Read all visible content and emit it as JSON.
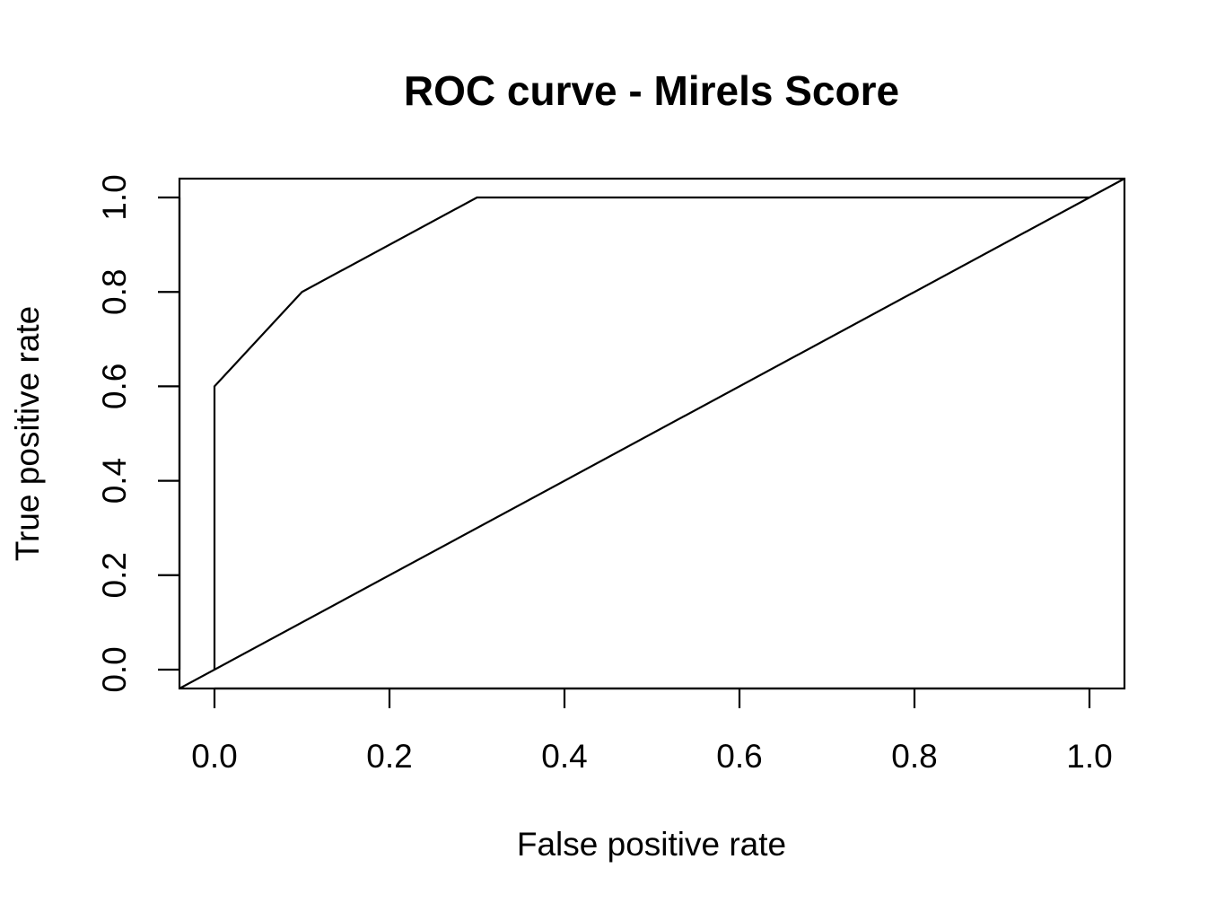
{
  "chart_data": {
    "type": "line",
    "title": "ROC curve - Mirels Score",
    "xlabel": "False positive rate",
    "ylabel": "True positive rate",
    "xlim": [
      -0.04,
      1.04
    ],
    "ylim": [
      -0.04,
      1.04
    ],
    "x_ticks": [
      0.0,
      0.2,
      0.4,
      0.6,
      0.8,
      1.0
    ],
    "y_ticks": [
      0.0,
      0.2,
      0.4,
      0.6,
      0.8,
      1.0
    ],
    "x_tick_labels": [
      "0.0",
      "0.2",
      "0.4",
      "0.6",
      "0.8",
      "1.0"
    ],
    "y_tick_labels": [
      "0.0",
      "0.2",
      "0.4",
      "0.6",
      "0.8",
      "1.0"
    ],
    "grid": false,
    "series": [
      {
        "x": [
          0.0,
          0.0,
          0.1,
          0.3,
          1.0
        ],
        "y": [
          0.0,
          0.6,
          0.8,
          1.0,
          1.0
        ],
        "color": "#000000"
      }
    ],
    "reference_line": {
      "x": [
        -0.04,
        1.04
      ],
      "y": [
        -0.04,
        1.04
      ],
      "color": "#000000"
    }
  }
}
